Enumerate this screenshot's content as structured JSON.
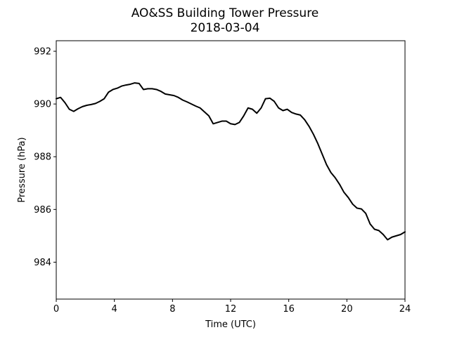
{
  "chart_data": {
    "type": "line",
    "title": "AO&SS Building Tower Pressure",
    "subtitle": "2018-03-04",
    "xlabel": "Time (UTC)",
    "ylabel": "Pressure (hPa)",
    "xlim": [
      0,
      24
    ],
    "ylim": [
      982.6,
      992.4
    ],
    "xticks": [
      0,
      4,
      8,
      12,
      16,
      20,
      24
    ],
    "xtick_labels": [
      "0",
      "4",
      "8",
      "12",
      "16",
      "20",
      "24"
    ],
    "yticks": [
      984,
      986,
      988,
      990,
      992
    ],
    "ytick_labels": [
      "984",
      "986",
      "988",
      "990",
      "992"
    ],
    "grid": false,
    "legend": "none",
    "line_color": "#000000",
    "series": [
      {
        "name": "",
        "x": [
          0,
          0.3,
          0.6,
          0.9,
          1.2,
          1.5,
          1.8,
          2.1,
          2.4,
          2.7,
          3.0,
          3.3,
          3.6,
          3.9,
          4.2,
          4.5,
          4.8,
          5.1,
          5.4,
          5.7,
          6.0,
          6.3,
          6.6,
          6.9,
          7.2,
          7.5,
          7.8,
          8.1,
          8.4,
          8.7,
          9.0,
          9.3,
          9.6,
          9.9,
          10.2,
          10.5,
          10.8,
          11.1,
          11.4,
          11.7,
          12.0,
          12.3,
          12.6,
          12.9,
          13.2,
          13.5,
          13.8,
          14.1,
          14.4,
          14.7,
          15.0,
          15.3,
          15.6,
          15.9,
          16.2,
          16.5,
          16.8,
          17.1,
          17.4,
          17.7,
          18.0,
          18.3,
          18.6,
          18.9,
          19.2,
          19.5,
          19.8,
          20.1,
          20.4,
          20.7,
          21.0,
          21.3,
          21.6,
          21.9,
          22.2,
          22.5,
          22.8,
          23.1,
          23.4,
          23.7,
          24.0
        ],
        "y": [
          990.2,
          990.25,
          990.05,
          989.8,
          989.72,
          989.82,
          989.9,
          989.95,
          989.98,
          990.02,
          990.1,
          990.2,
          990.45,
          990.55,
          990.6,
          990.68,
          990.72,
          990.75,
          990.8,
          990.78,
          990.55,
          990.58,
          990.58,
          990.55,
          990.48,
          990.38,
          990.35,
          990.32,
          990.25,
          990.15,
          990.08,
          990.0,
          989.92,
          989.85,
          989.7,
          989.55,
          989.25,
          989.3,
          989.35,
          989.35,
          989.25,
          989.22,
          989.3,
          989.55,
          989.85,
          989.8,
          989.65,
          989.85,
          990.2,
          990.22,
          990.1,
          989.85,
          989.75,
          989.8,
          989.68,
          989.62,
          989.58,
          989.4,
          989.15,
          988.85,
          988.5,
          988.1,
          987.7,
          987.4,
          987.2,
          986.95,
          986.65,
          986.45,
          986.2,
          986.05,
          986.02,
          985.85,
          985.45,
          985.25,
          985.2,
          985.05,
          984.85,
          984.95,
          985.0,
          985.05,
          985.15
        ]
      }
    ]
  }
}
